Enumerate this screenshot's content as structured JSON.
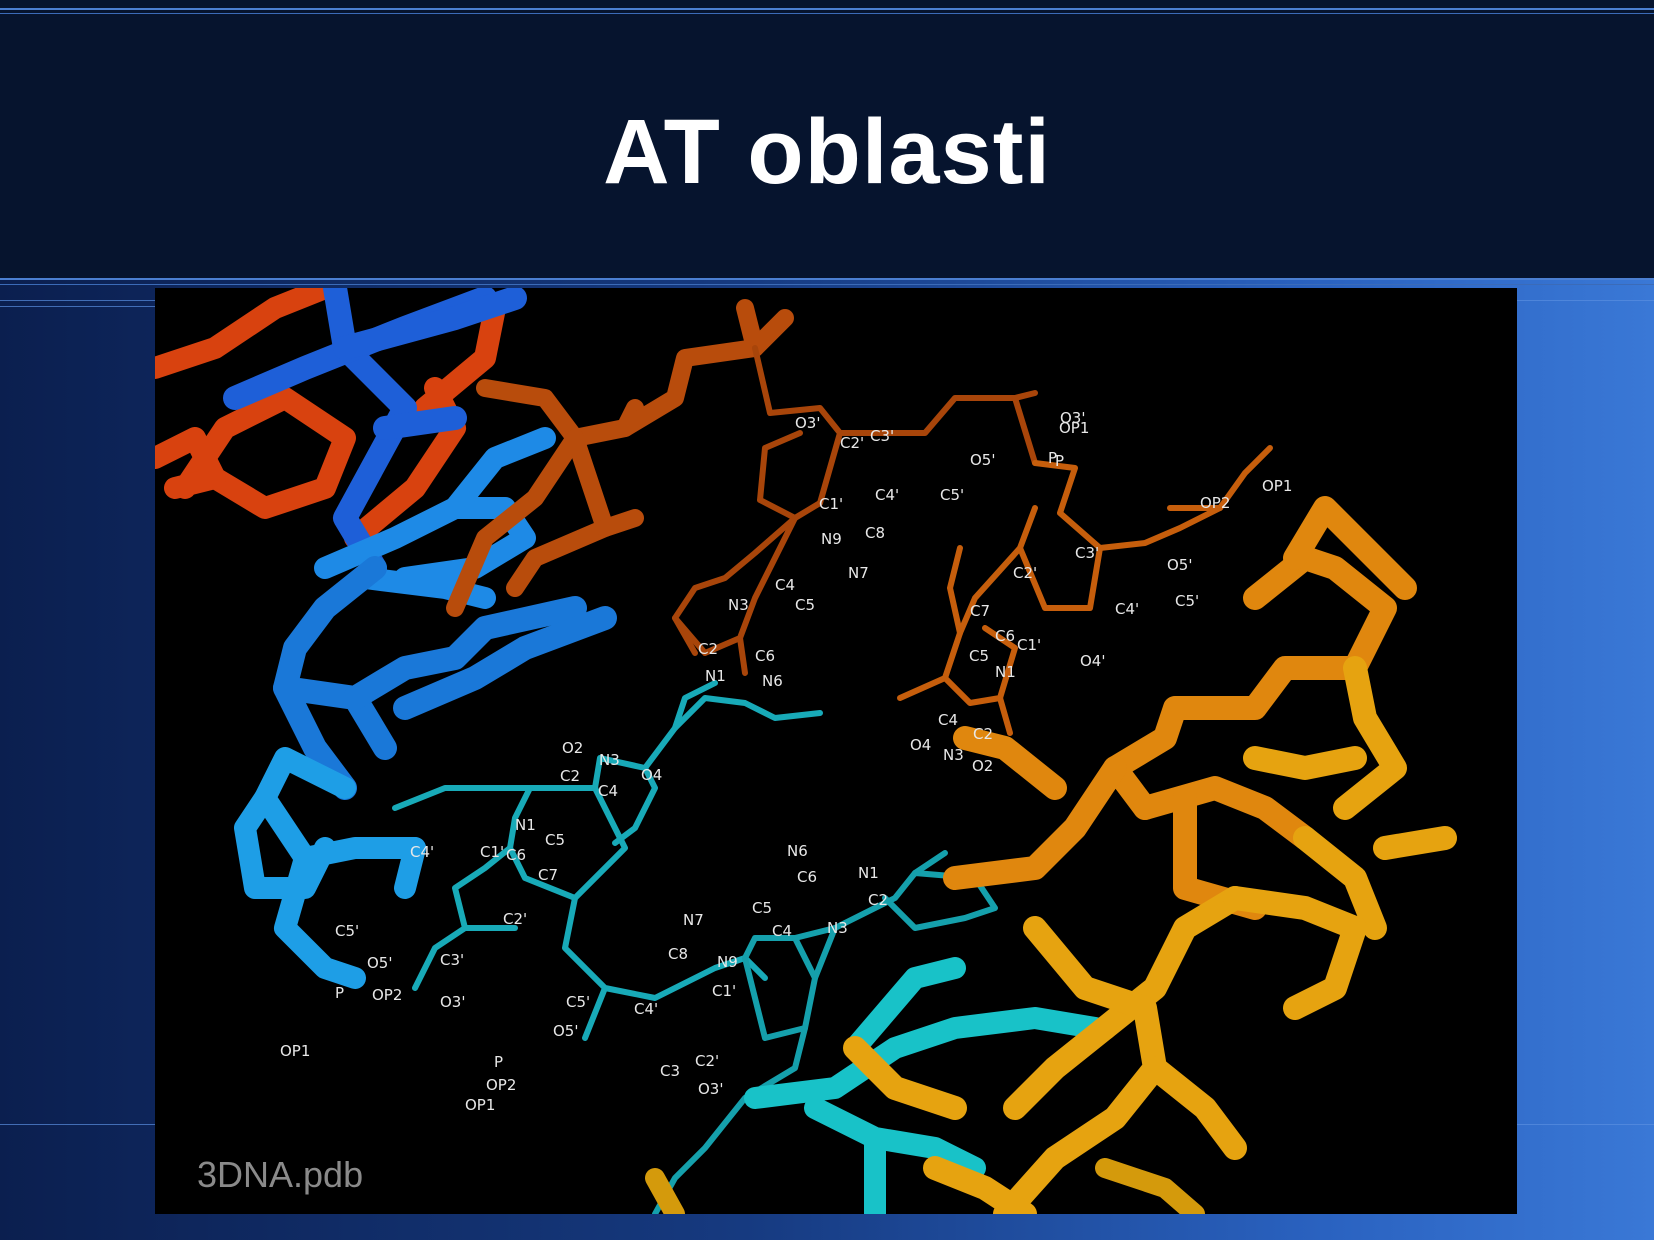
{
  "slide": {
    "title": "AT oblasti",
    "source_label": "3DNA.pdb"
  },
  "colors": {
    "header_bg": "#06142e",
    "accent_line": "#4b7fd1",
    "strand_red": "#d8420f",
    "strand_brown": "#b84c0c",
    "strand_orange": "#e0870e",
    "strand_gold": "#e6a310",
    "strand_blue": "#1e5fd8",
    "strand_sky": "#1e9ee6",
    "strand_teal": "#18aeb8"
  },
  "atom_labels": {
    "adenine_top": [
      "O3'",
      "C2'",
      "C3'",
      "C1'",
      "C4'",
      "C5'",
      "O5'",
      "P",
      "OP1",
      "N9",
      "C8",
      "N7",
      "C4",
      "C5",
      "N3",
      "C2",
      "N1",
      "C6",
      "N6"
    ],
    "thymine_top": [
      "O3'",
      "P",
      "OP2",
      "OP1",
      "O5'",
      "C5'",
      "C3'",
      "C2'",
      "C4'",
      "C1'",
      "O4'",
      "C7",
      "C5",
      "C6",
      "N1",
      "C4",
      "C2",
      "O4",
      "N3",
      "O2"
    ],
    "thymine_left": [
      "O2",
      "N3",
      "C2",
      "C4",
      "O4",
      "N1",
      "C6",
      "C5",
      "C7",
      "C4'",
      "C1'",
      "C2'",
      "C5'",
      "O5'",
      "P",
      "OP2",
      "OP1",
      "C3'",
      "O3'"
    ],
    "adenine_bottom": [
      "N6",
      "C6",
      "N1",
      "C2",
      "C5",
      "N7",
      "C4",
      "N3",
      "C8",
      "N9",
      "C1'",
      "C4'",
      "C5'",
      "O5'",
      "P",
      "OP2",
      "OP1",
      "C2'",
      "C3",
      "O3'"
    ]
  }
}
